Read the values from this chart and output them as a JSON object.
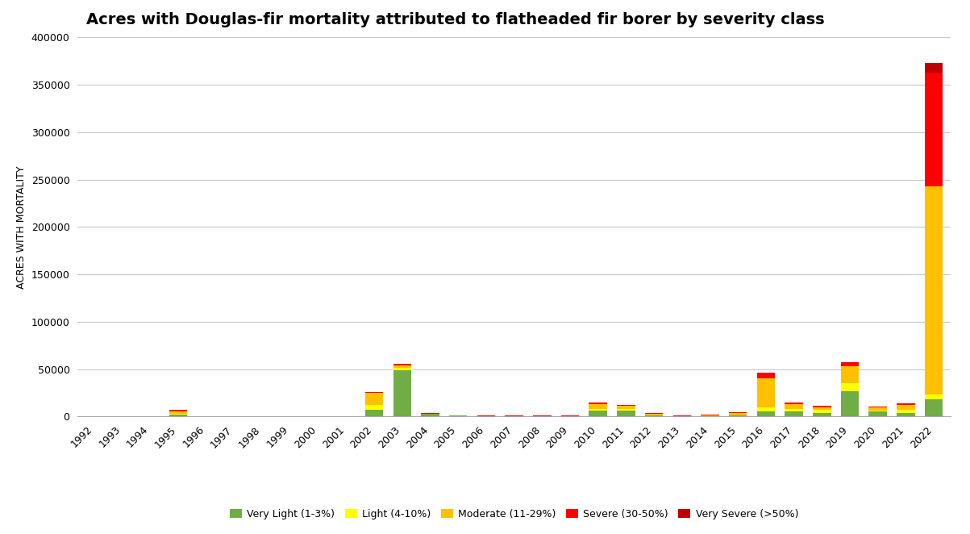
{
  "title": "Acres with Douglas-fir mortality attributed to flatheaded fir borer by severity class",
  "ylabel": "ACRES WITH MORTALITY",
  "years": [
    1992,
    1993,
    1994,
    1995,
    1996,
    1997,
    1998,
    1999,
    2000,
    2001,
    2002,
    2003,
    2004,
    2005,
    2006,
    2007,
    2008,
    2009,
    2010,
    2011,
    2012,
    2013,
    2014,
    2015,
    2016,
    2017,
    2018,
    2019,
    2020,
    2021,
    2022
  ],
  "very_light": [
    0,
    0,
    0,
    2000,
    0,
    0,
    0,
    0,
    0,
    0,
    7000,
    49000,
    2500,
    1000,
    500,
    500,
    500,
    500,
    6000,
    6000,
    1000,
    500,
    500,
    1500,
    5000,
    5000,
    4000,
    27000,
    5000,
    4000,
    18000
  ],
  "light": [
    0,
    0,
    0,
    1000,
    0,
    0,
    0,
    0,
    0,
    0,
    5000,
    2000,
    0,
    0,
    0,
    0,
    0,
    0,
    2000,
    2000,
    0,
    0,
    0,
    0,
    5000,
    3000,
    3000,
    8000,
    1500,
    3000,
    5000
  ],
  "moderate": [
    0,
    0,
    0,
    2500,
    0,
    0,
    0,
    0,
    0,
    0,
    13000,
    3000,
    0,
    0,
    0,
    0,
    0,
    0,
    5000,
    3000,
    1500,
    0,
    1000,
    2000,
    30000,
    5000,
    3000,
    18000,
    3000,
    5000,
    220000
  ],
  "severe": [
    0,
    0,
    0,
    1500,
    0,
    0,
    0,
    0,
    0,
    0,
    1000,
    1500,
    1500,
    500,
    500,
    500,
    500,
    500,
    1500,
    1500,
    1000,
    500,
    500,
    1000,
    6000,
    2000,
    1000,
    4000,
    1000,
    2000,
    120000
  ],
  "very_severe": [
    0,
    0,
    0,
    0,
    0,
    0,
    0,
    0,
    0,
    0,
    0,
    0,
    0,
    0,
    0,
    0,
    0,
    0,
    0,
    0,
    0,
    0,
    0,
    0,
    0,
    0,
    0,
    0,
    0,
    0,
    10000
  ],
  "colors": {
    "very_light": "#70AD47",
    "light": "#FFFF00",
    "moderate": "#FFC000",
    "severe": "#FF0000",
    "very_severe": "#C00000"
  },
  "legend_labels": {
    "very_light": "Very Light (1-3%)",
    "light": "Light (4-10%)",
    "moderate": "Moderate (11-29%)",
    "severe": "Severe (30-50%)",
    "very_severe": "Very Severe (>50%)"
  },
  "ylim": [
    0,
    400000
  ],
  "yticks": [
    0,
    50000,
    100000,
    150000,
    200000,
    250000,
    300000,
    350000,
    400000
  ],
  "background_color": "#FFFFFF",
  "grid_color": "#C8C8C8",
  "title_fontsize": 14,
  "axis_label_fontsize": 9
}
